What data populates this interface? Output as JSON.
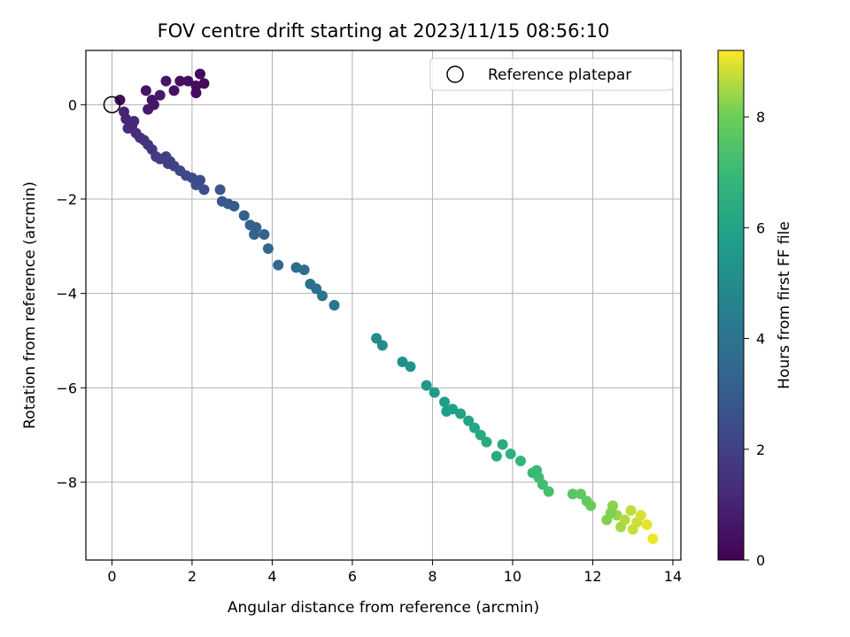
{
  "chart_data": {
    "type": "scatter",
    "title": "FOV centre drift starting at 2023/11/15 08:56:10",
    "xlabel": "Angular distance from reference (arcmin)",
    "ylabel": "Rotation from reference (arcmin)",
    "xlim": [
      -0.65,
      14.2
    ],
    "ylim": [
      -9.65,
      1.15
    ],
    "xticks": [
      0,
      2,
      4,
      6,
      8,
      10,
      12,
      14
    ],
    "yticks": [
      0,
      -2,
      -4,
      -6,
      -8
    ],
    "grid": true,
    "legend": {
      "placement": "top-right",
      "label": "Reference platepar"
    },
    "reference_point": {
      "x": 0,
      "y": 0
    },
    "colorbar": {
      "label": "Hours from first FF file",
      "range": [
        0,
        9.2
      ],
      "ticks": [
        0,
        2,
        4,
        6,
        8
      ],
      "colormap": "viridis"
    },
    "points": [
      {
        "x": 0.2,
        "y": 0.1,
        "h": 0.3
      },
      {
        "x": 0.85,
        "y": 0.3,
        "h": 0.5
      },
      {
        "x": 1.0,
        "y": 0.1,
        "h": 0.6
      },
      {
        "x": 1.2,
        "y": 0.2,
        "h": 0.7
      },
      {
        "x": 1.35,
        "y": 0.5,
        "h": 0.6
      },
      {
        "x": 1.55,
        "y": 0.3,
        "h": 0.5
      },
      {
        "x": 1.7,
        "y": 0.5,
        "h": 0.4
      },
      {
        "x": 1.9,
        "y": 0.5,
        "h": 0.4
      },
      {
        "x": 2.1,
        "y": 0.4,
        "h": 0.3
      },
      {
        "x": 2.2,
        "y": 0.65,
        "h": 0.2
      },
      {
        "x": 2.3,
        "y": 0.45,
        "h": 0.2
      },
      {
        "x": 0.9,
        "y": -0.1,
        "h": 0.7
      },
      {
        "x": 2.1,
        "y": 0.25,
        "h": 0.3
      },
      {
        "x": 1.05,
        "y": 0.0,
        "h": 0.65
      },
      {
        "x": 0.35,
        "y": -0.3,
        "h": 1.1
      },
      {
        "x": 0.4,
        "y": -0.5,
        "h": 1.2
      },
      {
        "x": 0.5,
        "y": -0.45,
        "h": 1.2
      },
      {
        "x": 0.6,
        "y": -0.6,
        "h": 1.3
      },
      {
        "x": 0.7,
        "y": -0.7,
        "h": 1.4
      },
      {
        "x": 0.8,
        "y": -0.75,
        "h": 1.5
      },
      {
        "x": 0.9,
        "y": -0.85,
        "h": 1.6
      },
      {
        "x": 1.0,
        "y": -0.95,
        "h": 1.7
      },
      {
        "x": 1.1,
        "y": -1.1,
        "h": 1.8
      },
      {
        "x": 1.2,
        "y": -1.15,
        "h": 1.9
      },
      {
        "x": 1.35,
        "y": -1.1,
        "h": 1.9
      },
      {
        "x": 1.45,
        "y": -1.2,
        "h": 2.0
      },
      {
        "x": 1.55,
        "y": -1.3,
        "h": 2.1
      },
      {
        "x": 1.7,
        "y": -1.4,
        "h": 2.2
      },
      {
        "x": 1.85,
        "y": -1.5,
        "h": 2.3
      },
      {
        "x": 2.0,
        "y": -1.55,
        "h": 2.4
      },
      {
        "x": 2.2,
        "y": -1.6,
        "h": 2.4
      },
      {
        "x": 2.3,
        "y": -1.8,
        "h": 2.5
      },
      {
        "x": 2.1,
        "y": -1.7,
        "h": 2.5
      },
      {
        "x": 1.4,
        "y": -1.25,
        "h": 2.0
      },
      {
        "x": 0.55,
        "y": -0.35,
        "h": 1.2
      },
      {
        "x": 0.3,
        "y": -0.15,
        "h": 1.0
      },
      {
        "x": 2.7,
        "y": -1.8,
        "h": 2.8
      },
      {
        "x": 2.75,
        "y": -2.05,
        "h": 2.9
      },
      {
        "x": 2.9,
        "y": -2.1,
        "h": 3.0
      },
      {
        "x": 3.05,
        "y": -2.15,
        "h": 3.0
      },
      {
        "x": 3.3,
        "y": -2.35,
        "h": 3.1
      },
      {
        "x": 3.45,
        "y": -2.55,
        "h": 3.2
      },
      {
        "x": 3.55,
        "y": -2.75,
        "h": 3.3
      },
      {
        "x": 3.8,
        "y": -2.75,
        "h": 3.3
      },
      {
        "x": 3.9,
        "y": -3.05,
        "h": 3.4
      },
      {
        "x": 4.15,
        "y": -3.4,
        "h": 3.5
      },
      {
        "x": 4.6,
        "y": -3.45,
        "h": 3.6
      },
      {
        "x": 4.8,
        "y": -3.5,
        "h": 3.7
      },
      {
        "x": 4.95,
        "y": -3.8,
        "h": 3.8
      },
      {
        "x": 5.1,
        "y": -3.9,
        "h": 3.8
      },
      {
        "x": 5.25,
        "y": -4.05,
        "h": 3.9
      },
      {
        "x": 5.55,
        "y": -4.25,
        "h": 4.0
      },
      {
        "x": 3.6,
        "y": -2.6,
        "h": 3.2
      },
      {
        "x": 6.6,
        "y": -4.95,
        "h": 5.0
      },
      {
        "x": 6.75,
        "y": -5.1,
        "h": 5.0
      },
      {
        "x": 7.25,
        "y": -5.45,
        "h": 5.2
      },
      {
        "x": 7.45,
        "y": -5.55,
        "h": 5.3
      },
      {
        "x": 7.85,
        "y": -5.95,
        "h": 5.5
      },
      {
        "x": 8.05,
        "y": -6.1,
        "h": 5.6
      },
      {
        "x": 8.3,
        "y": -6.3,
        "h": 5.7
      },
      {
        "x": 8.5,
        "y": -6.45,
        "h": 5.8
      },
      {
        "x": 8.7,
        "y": -6.55,
        "h": 5.9
      },
      {
        "x": 8.9,
        "y": -6.7,
        "h": 6.0
      },
      {
        "x": 9.05,
        "y": -6.85,
        "h": 6.1
      },
      {
        "x": 9.2,
        "y": -7.0,
        "h": 6.2
      },
      {
        "x": 9.35,
        "y": -7.15,
        "h": 6.3
      },
      {
        "x": 9.6,
        "y": -7.45,
        "h": 6.3
      },
      {
        "x": 9.75,
        "y": -7.2,
        "h": 6.4
      },
      {
        "x": 9.95,
        "y": -7.4,
        "h": 6.6
      },
      {
        "x": 10.2,
        "y": -7.55,
        "h": 6.8
      },
      {
        "x": 10.5,
        "y": -7.8,
        "h": 7.0
      },
      {
        "x": 10.65,
        "y": -7.9,
        "h": 7.1
      },
      {
        "x": 10.75,
        "y": -8.05,
        "h": 7.2
      },
      {
        "x": 10.9,
        "y": -8.2,
        "h": 7.3
      },
      {
        "x": 10.6,
        "y": -7.75,
        "h": 7.0
      },
      {
        "x": 8.35,
        "y": -6.5,
        "h": 5.8
      },
      {
        "x": 11.5,
        "y": -8.25,
        "h": 7.6
      },
      {
        "x": 11.7,
        "y": -8.25,
        "h": 7.7
      },
      {
        "x": 11.85,
        "y": -8.4,
        "h": 7.8
      },
      {
        "x": 11.95,
        "y": -8.5,
        "h": 7.9
      },
      {
        "x": 12.35,
        "y": -8.8,
        "h": 8.2
      },
      {
        "x": 12.5,
        "y": -8.5,
        "h": 8.3
      },
      {
        "x": 12.6,
        "y": -8.7,
        "h": 8.4
      },
      {
        "x": 12.7,
        "y": -8.95,
        "h": 8.5
      },
      {
        "x": 12.8,
        "y": -8.8,
        "h": 8.6
      },
      {
        "x": 12.95,
        "y": -8.6,
        "h": 8.7
      },
      {
        "x": 13.1,
        "y": -8.85,
        "h": 8.8
      },
      {
        "x": 13.2,
        "y": -8.7,
        "h": 8.9
      },
      {
        "x": 13.35,
        "y": -8.9,
        "h": 9.0
      },
      {
        "x": 13.5,
        "y": -9.2,
        "h": 9.1
      },
      {
        "x": 13.0,
        "y": -9.0,
        "h": 8.8
      },
      {
        "x": 12.45,
        "y": -8.65,
        "h": 8.2
      }
    ]
  }
}
